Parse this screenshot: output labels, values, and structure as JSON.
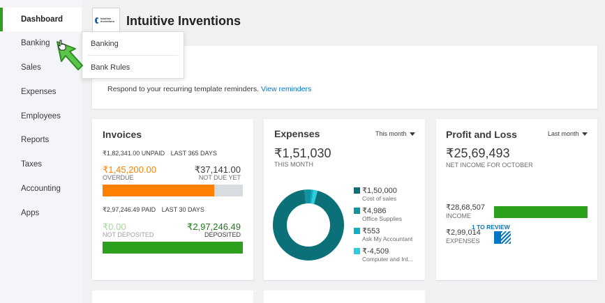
{
  "sidebar": {
    "items": [
      {
        "label": "Dashboard"
      },
      {
        "label": "Banking"
      },
      {
        "label": "Sales"
      },
      {
        "label": "Expenses"
      },
      {
        "label": "Employees"
      },
      {
        "label": "Reports"
      },
      {
        "label": "Taxes"
      },
      {
        "label": "Accounting"
      },
      {
        "label": "Apps"
      }
    ]
  },
  "flyout": {
    "items": [
      {
        "label": "Banking"
      },
      {
        "label": "Bank Rules"
      }
    ]
  },
  "header": {
    "company_name": "Intuitive Inventions",
    "logo_text": "intuitive inventions"
  },
  "reminder": {
    "text": "Respond to your recurring template reminders.",
    "link": "View reminders"
  },
  "invoices": {
    "title": "Invoices",
    "unpaid_amount": "₹1,82,341.00 UNPAID",
    "unpaid_period": "LAST 365 DAYS",
    "overdue_value": "₹1,45,200.00",
    "overdue_label": "OVERDUE",
    "not_due_value": "₹37,141.00",
    "not_due_label": "NOT DUE YET",
    "overdue_fraction": 0.796,
    "paid_amount": "₹2,97,246.49 PAID",
    "paid_period": "LAST 30 DAYS",
    "not_deposited_value": "₹0.00",
    "not_deposited_label": "NOT DEPOSITED",
    "deposited_value": "₹2,97,246.49",
    "deposited_label": "DEPOSITED"
  },
  "expenses": {
    "title": "Expenses",
    "period": "This month",
    "total": "₹1,51,030",
    "total_label": "THIS MONTH",
    "legend": [
      {
        "value": "₹1,50,000",
        "label": "Cost of sales",
        "color": "#0b7077"
      },
      {
        "value": "₹4,986",
        "label": "Office Supplies",
        "color": "#1193a0"
      },
      {
        "value": "₹553",
        "label": "Ask My Accountant",
        "color": "#0fb0c4"
      },
      {
        "value": "₹-4,509",
        "label": "Computer and Int...",
        "color": "#2dcde0"
      }
    ]
  },
  "profit_loss": {
    "title": "Profit and Loss",
    "period": "Last month",
    "net_income": "₹25,69,493",
    "net_income_label": "NET INCOME FOR OCTOBER",
    "income_value": "₹28,68,507",
    "income_label": "INCOME",
    "expenses_value": "₹2,99,014",
    "expenses_label": "EXPENSES",
    "review_badge": "1 TO REVIEW"
  },
  "colors": {
    "accent_green": "#2ca01c",
    "overdue_orange": "#ff8000",
    "deposited_green": "#2ca01c",
    "link_blue": "#0077c5",
    "teal_dark": "#0b7077"
  }
}
